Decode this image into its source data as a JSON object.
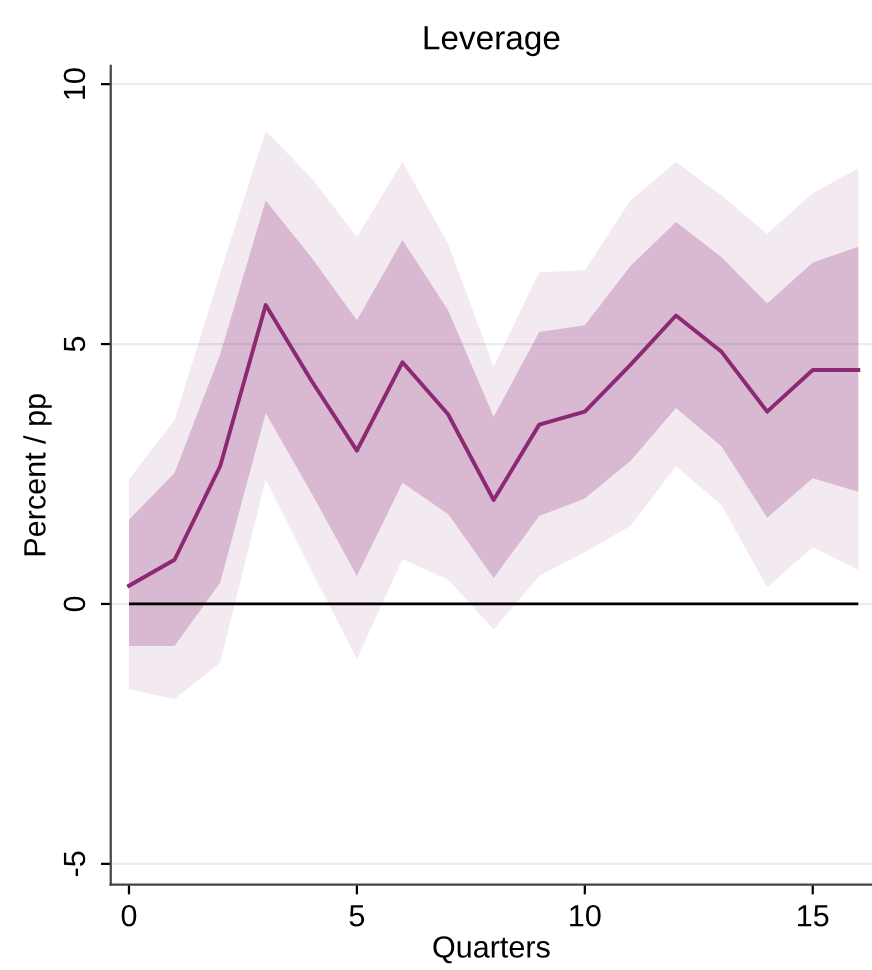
{
  "chart_data": {
    "type": "line",
    "title": "Leverage",
    "xlabel": "Quarters",
    "ylabel": "Percent / pp",
    "x": [
      0,
      1,
      2,
      3,
      4,
      5,
      6,
      7,
      8,
      9,
      10,
      11,
      12,
      13,
      14,
      15,
      16
    ],
    "series": [
      {
        "color": "#8b2a72",
        "values": [
          0.35,
          0.85,
          2.65,
          5.75,
          4.3,
          2.95,
          4.65,
          3.65,
          2.0,
          3.45,
          3.7,
          4.6,
          5.55,
          4.85,
          3.7,
          4.5,
          4.5
        ],
        "lower": [
          -0.81,
          -0.81,
          0.41,
          3.67,
          2.14,
          0.54,
          2.33,
          1.73,
          0.5,
          1.69,
          2.03,
          2.75,
          3.77,
          3.03,
          1.66,
          2.42,
          2.16
        ],
        "upper": [
          1.62,
          2.52,
          4.8,
          7.76,
          6.67,
          5.46,
          7.0,
          5.65,
          3.6,
          5.23,
          5.36,
          6.5,
          7.35,
          6.67,
          5.78,
          6.57,
          6.87
        ]
      },
      {
        "color": "#8b2a72",
        "values": [
          null,
          null,
          null,
          null,
          null,
          null,
          null,
          null,
          null,
          null,
          null,
          null,
          null,
          null,
          null,
          null,
          null
        ],
        "lower": [
          -1.64,
          -1.83,
          -1.13,
          2.39,
          0.65,
          -1.06,
          0.86,
          0.47,
          -0.49,
          0.54,
          1.0,
          1.5,
          2.65,
          1.9,
          0.32,
          1.09,
          0.66
        ],
        "upper": [
          2.4,
          3.54,
          6.36,
          9.1,
          8.2,
          7.06,
          8.5,
          6.93,
          4.57,
          6.38,
          6.42,
          7.76,
          8.5,
          7.86,
          7.12,
          7.9,
          8.38
        ]
      }
    ],
    "xlim": [
      -0.4,
      16.3
    ],
    "ylim": [
      -5.4,
      10.35
    ],
    "xticks": [
      0,
      5,
      10,
      15
    ],
    "yticks": [
      -5,
      0,
      5,
      10
    ],
    "grid": "y",
    "ref_lines": [
      {
        "axis": "y",
        "value": 0,
        "color": "#000000"
      }
    ]
  }
}
